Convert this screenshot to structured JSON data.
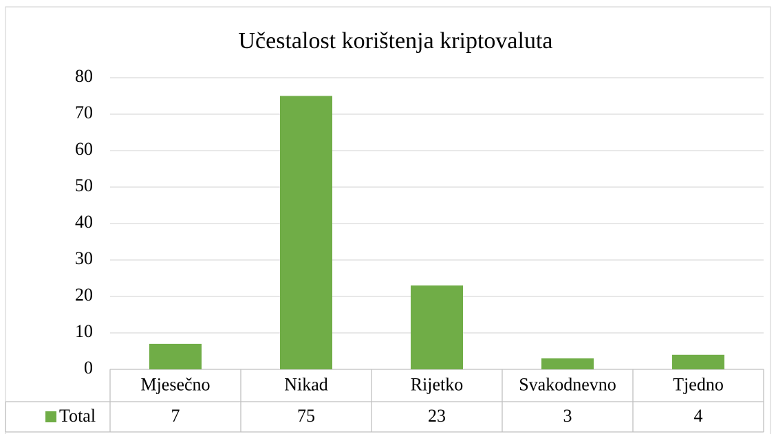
{
  "chart_data": {
    "type": "bar",
    "title": "Učestalost korištenja kriptovaluta",
    "categories": [
      "Mjesečno",
      "Nikad",
      "Rijetko",
      "Svakodnevno",
      "Tjedno"
    ],
    "series": [
      {
        "name": "Total",
        "color": "#70ad47",
        "values": [
          7,
          75,
          23,
          3,
          4
        ]
      }
    ],
    "ylim": [
      0,
      80
    ],
    "yticks": [
      0,
      10,
      20,
      30,
      40,
      50,
      60,
      70,
      80
    ],
    "grid": true,
    "legend": "bottom-left"
  }
}
